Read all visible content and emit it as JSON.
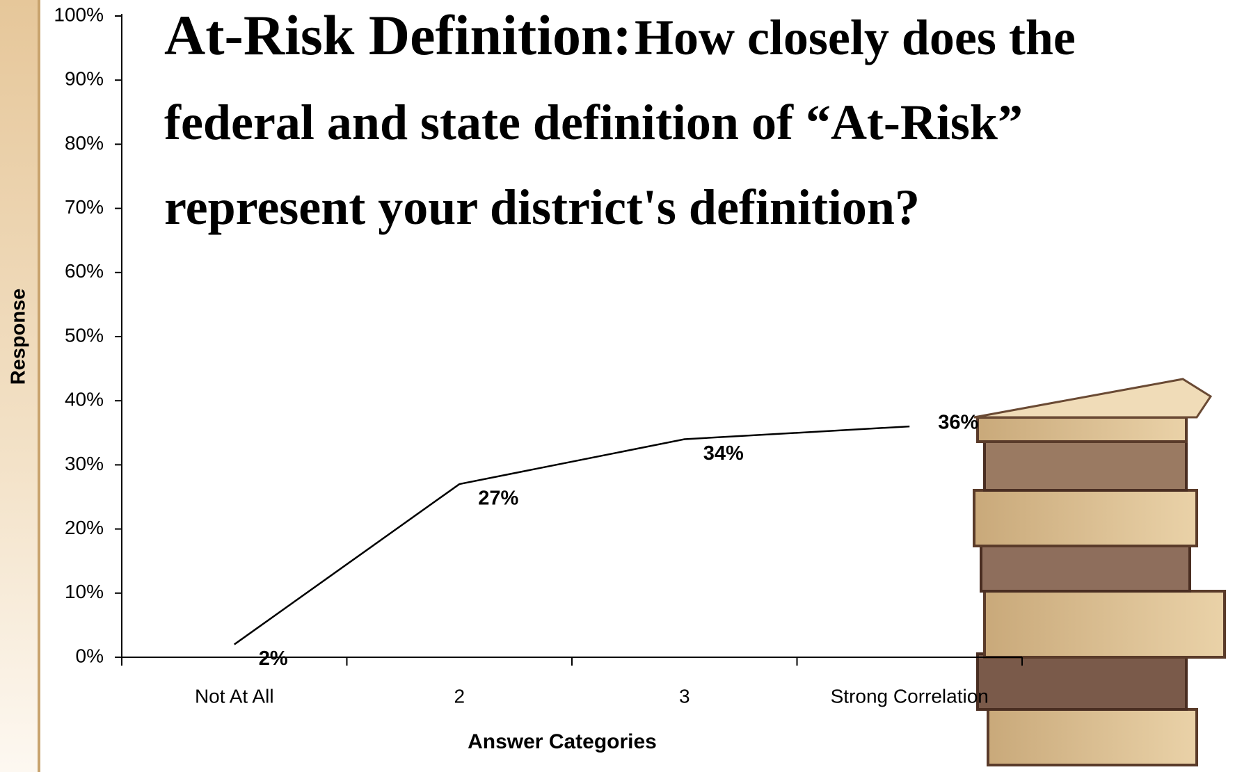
{
  "chart_data": {
    "type": "line",
    "title": "At-Risk Definition:",
    "subtitle": "How closely does the federal and state definition of “At-Risk” represent your district's definition?",
    "x_label": "Answer Categories",
    "y_label": "Response",
    "categories": [
      "Not At All",
      "2",
      "3",
      "Strong Correlation"
    ],
    "values": [
      2,
      27,
      34,
      36
    ],
    "value_labels": [
      "2%",
      "27%",
      "34%",
      "36%"
    ],
    "color": "#000000",
    "ylim": [
      0,
      100
    ],
    "yticks": [
      {
        "value": 0,
        "label": "0%"
      },
      {
        "value": 10,
        "label": "10%"
      },
      {
        "value": 20,
        "label": "20%"
      },
      {
        "value": 30,
        "label": "30%"
      },
      {
        "value": 40,
        "label": "40%"
      },
      {
        "value": 50,
        "label": "50%"
      },
      {
        "value": 60,
        "label": "60%"
      },
      {
        "value": 70,
        "label": "70%"
      },
      {
        "value": 80,
        "label": "80%"
      },
      {
        "value": 90,
        "label": "90%"
      },
      {
        "value": 100,
        "label": "100%"
      }
    ],
    "grid": false
  }
}
